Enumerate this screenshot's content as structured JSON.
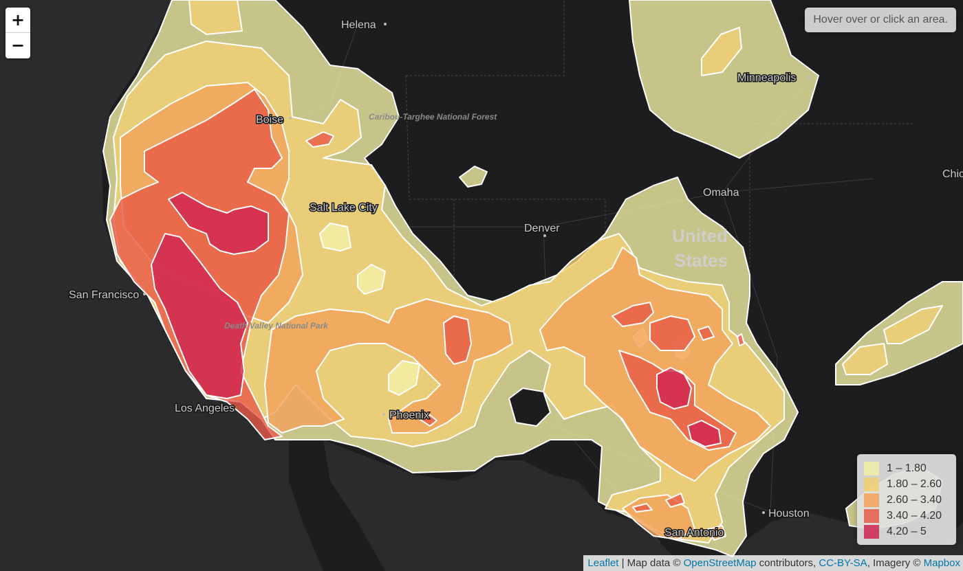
{
  "map": {
    "cities": [
      {
        "name": "Helena"
      },
      {
        "name": "Boise"
      },
      {
        "name": "Minneapolis"
      },
      {
        "name": "Salt Lake City"
      },
      {
        "name": "Omaha"
      },
      {
        "name": "Denver"
      },
      {
        "name": "San Francisco"
      },
      {
        "name": "Los Angeles"
      },
      {
        "name": "Phoenix"
      },
      {
        "name": "Houston"
      },
      {
        "name": "San Antonio"
      },
      {
        "name": "Chicago"
      }
    ],
    "features": [
      {
        "name": "Caribou-Targhee National Forest"
      },
      {
        "name": "Death Valley National Park"
      }
    ],
    "country_label": [
      "United",
      "States"
    ]
  },
  "controls": {
    "zoom_in": "+",
    "zoom_out": "−"
  },
  "info_box": {
    "text": "Hover over or click an area."
  },
  "legend": {
    "items": [
      {
        "label": "1 – 1.80",
        "color": "#f3efa5"
      },
      {
        "label": "1.80 – 2.60",
        "color": "#f2cf74"
      },
      {
        "label": "2.60 – 3.40",
        "color": "#f2a35b"
      },
      {
        "label": "3.40 – 4.20",
        "color": "#e85a47"
      },
      {
        "label": "4.20 – 5",
        "color": "#cf2550"
      }
    ]
  },
  "attribution": {
    "leaflet": "Leaflet",
    "sep1": " | Map data © ",
    "osm": "OpenStreetMap",
    "sep2": " contributors, ",
    "license": "CC-BY-SA",
    "sep3": ", Imagery © ",
    "mapbox": "Mapbox"
  }
}
